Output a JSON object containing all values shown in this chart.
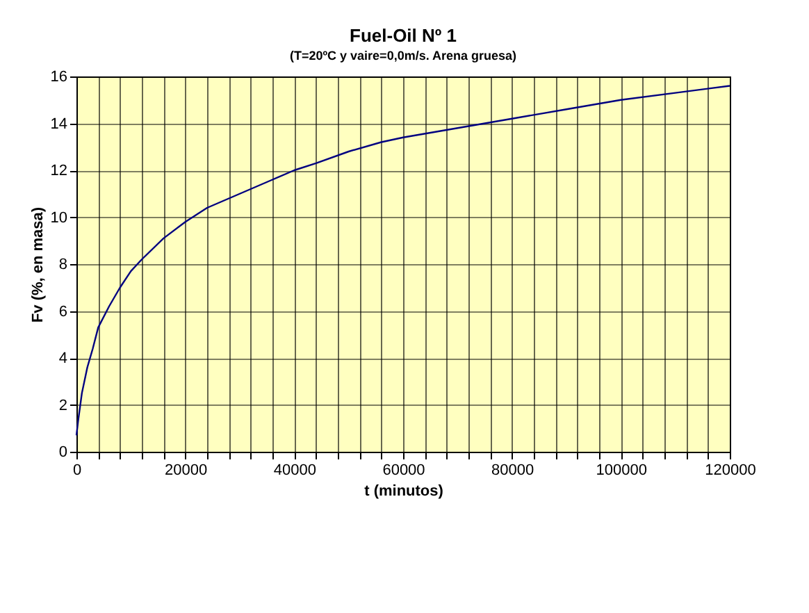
{
  "chart_data": {
    "type": "line",
    "title": "Fuel-Oil Nº 1",
    "subtitle": "(T=20ºC y vaire=0,0m/s. Arena gruesa)",
    "xlabel": "t (minutos)",
    "ylabel": "Fv (%, en masa)",
    "x": [
      0,
      300,
      1000,
      2000,
      3000,
      4000,
      6000,
      8000,
      10000,
      12000,
      16000,
      20000,
      24000,
      30000,
      36000,
      40000,
      44000,
      50000,
      56000,
      60000,
      70000,
      80000,
      90000,
      100000,
      110000,
      120000
    ],
    "series": [
      {
        "color": "#000080",
        "values": [
          0.7,
          1.3,
          2.5,
          3.6,
          4.4,
          5.3,
          6.2,
          7.0,
          7.7,
          8.2,
          9.1,
          9.8,
          10.4,
          11.0,
          11.6,
          12.0,
          12.3,
          12.8,
          13.2,
          13.4,
          13.8,
          14.2,
          14.6,
          15.0,
          15.3,
          15.6
        ]
      }
    ],
    "xlim": [
      0,
      120000
    ],
    "ylim": [
      0,
      16
    ],
    "xticks": [
      0,
      {
        "value": 4000,
        "label": null
      },
      {
        "value": 8000,
        "label": null
      },
      {
        "value": 12000,
        "label": null
      },
      {
        "value": 16000,
        "label": null
      },
      20000,
      {
        "value": 24000,
        "label": null
      },
      {
        "value": 28000,
        "label": null
      },
      {
        "value": 32000,
        "label": null
      },
      {
        "value": 36000,
        "label": null
      },
      40000,
      {
        "value": 44000,
        "label": null
      },
      {
        "value": 48000,
        "label": null
      },
      {
        "value": 52000,
        "label": null
      },
      {
        "value": 56000,
        "label": null
      },
      60000,
      {
        "value": 64000,
        "label": null
      },
      {
        "value": 68000,
        "label": null
      },
      {
        "value": 72000,
        "label": null
      },
      {
        "value": 76000,
        "label": null
      },
      80000,
      {
        "value": 84000,
        "label": null
      },
      {
        "value": 88000,
        "label": null
      },
      {
        "value": 92000,
        "label": null
      },
      {
        "value": 96000,
        "label": null
      },
      100000,
      {
        "value": 104000,
        "label": null
      },
      {
        "value": 108000,
        "label": null
      },
      {
        "value": 112000,
        "label": null
      },
      {
        "value": 116000,
        "label": null
      },
      120000
    ],
    "yticks": [
      0,
      2,
      4,
      6,
      8,
      10,
      12,
      14,
      16
    ],
    "grid": true,
    "marker": "none",
    "line_style": "solid"
  }
}
